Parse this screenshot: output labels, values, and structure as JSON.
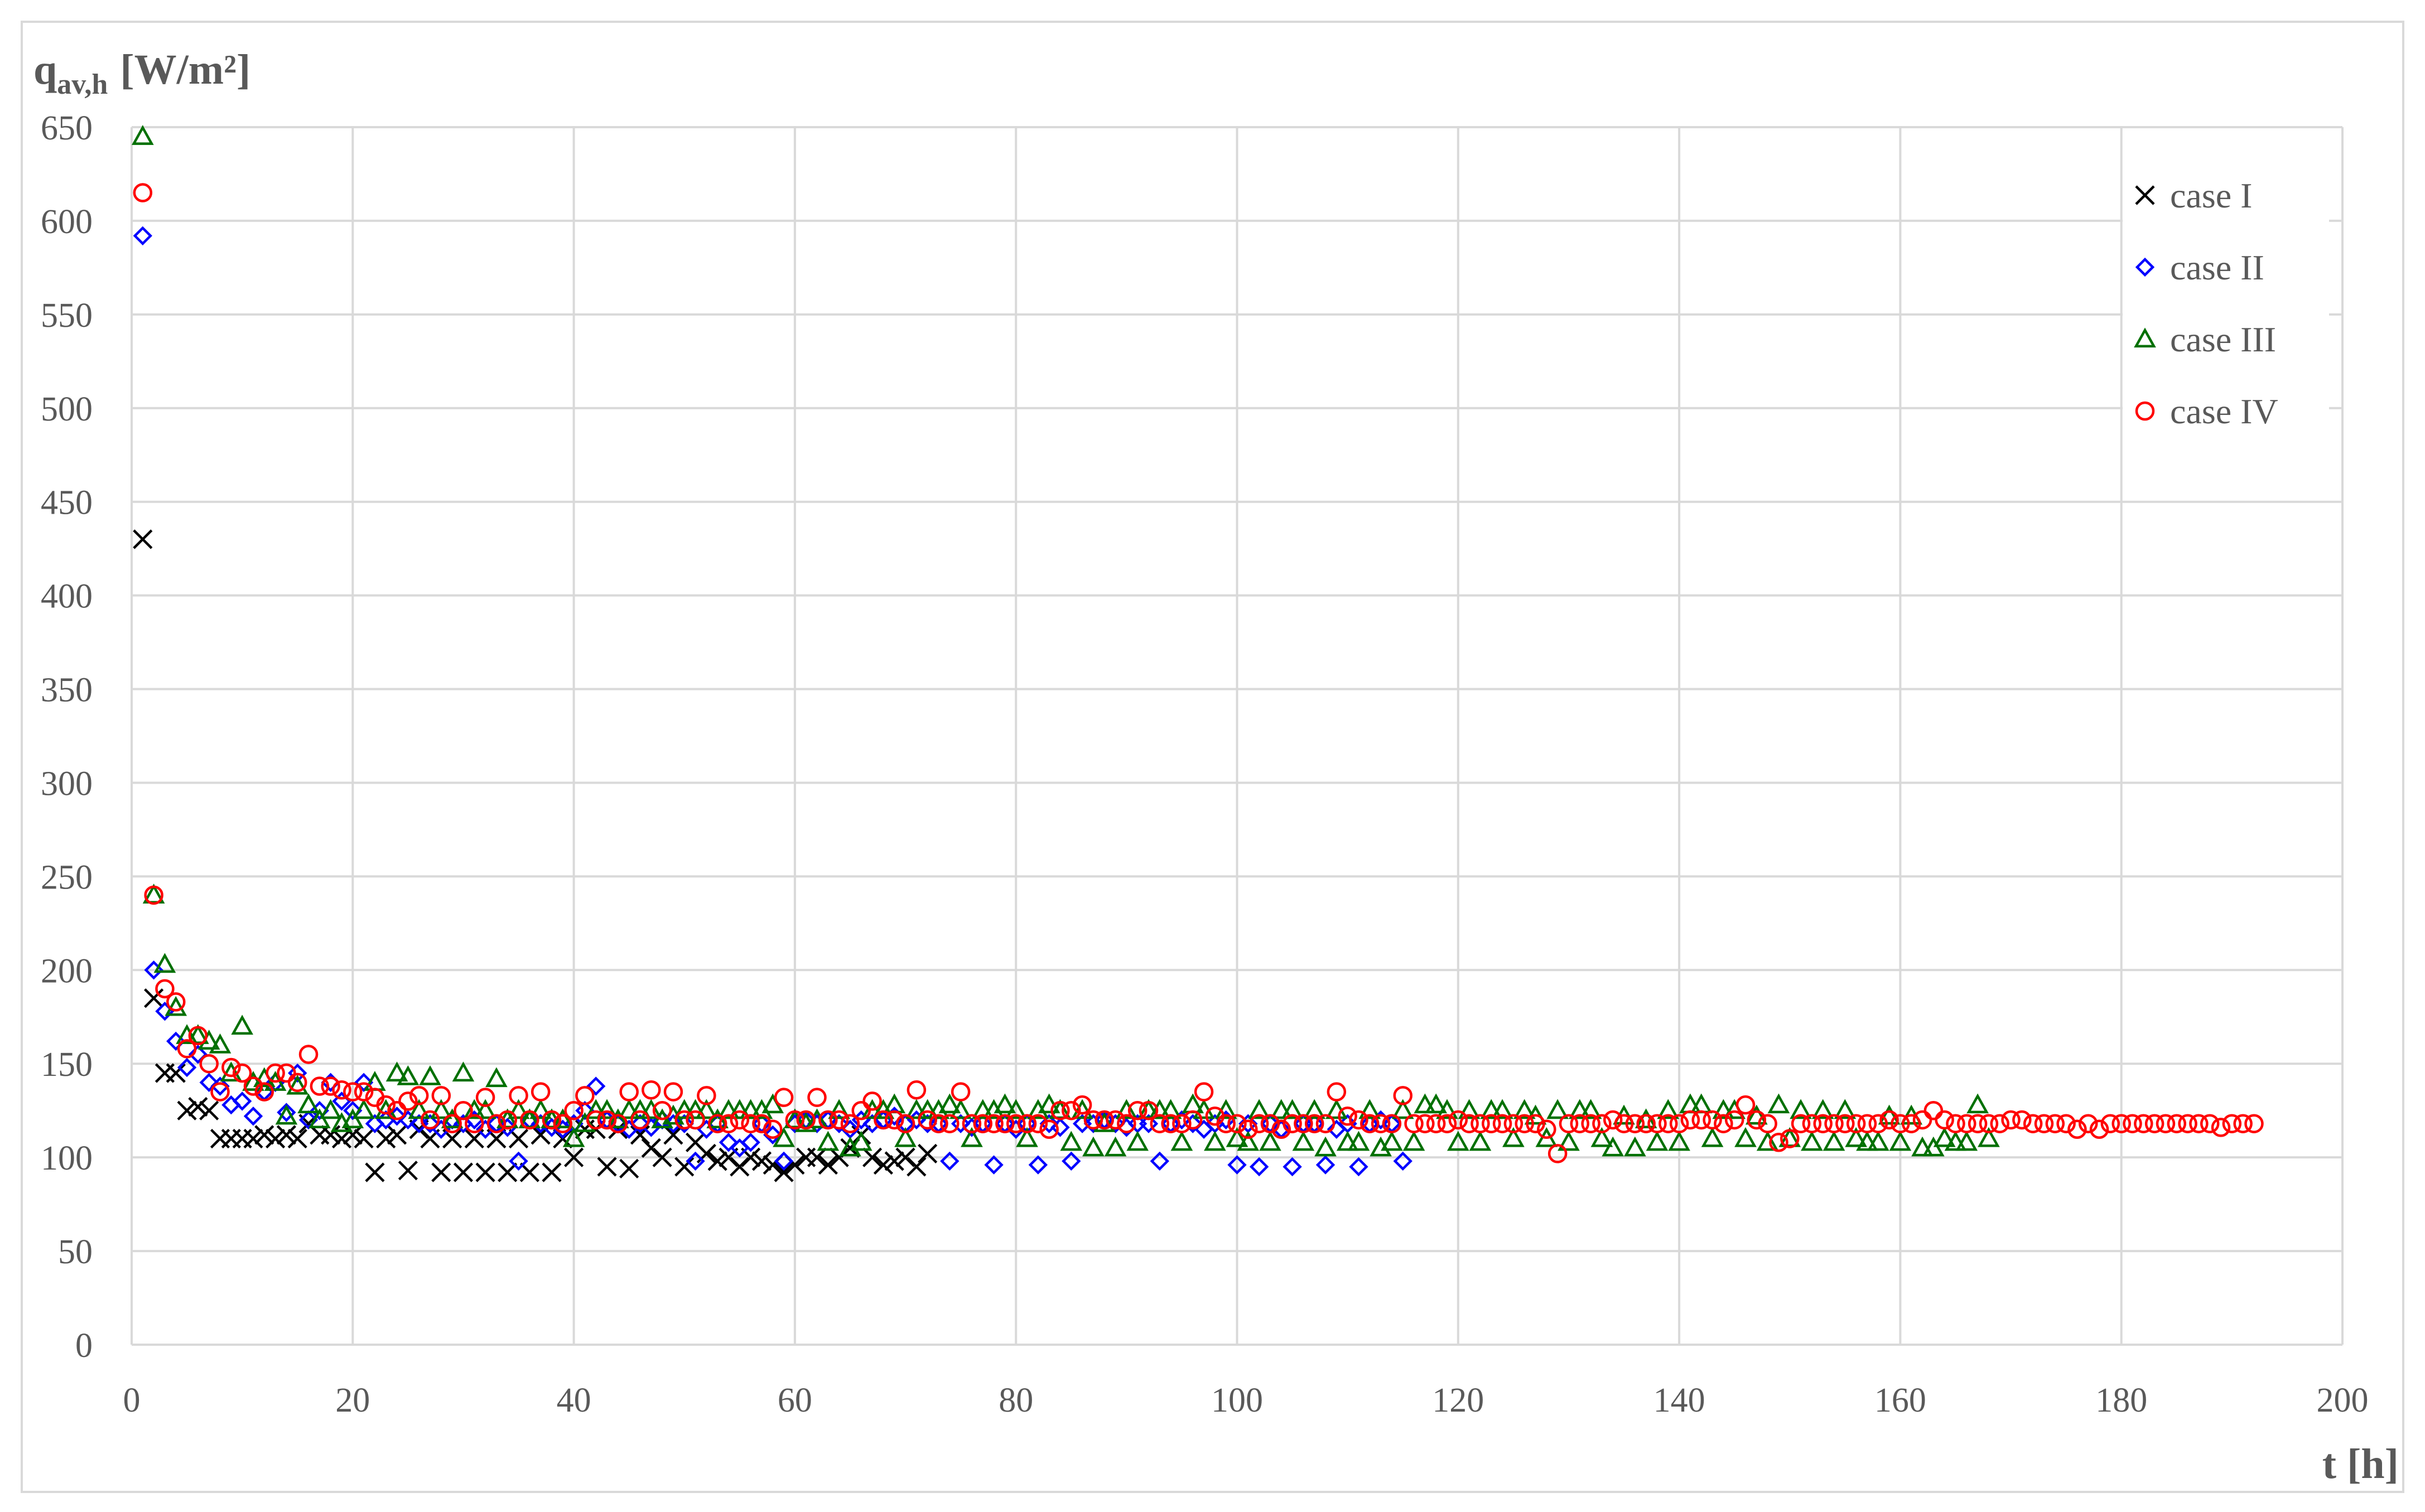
{
  "chart_data": {
    "type": "scatter",
    "y_label": {
      "symbol": "q",
      "subscript": "av,h",
      "unit": "[W/m²]"
    },
    "x_label": "t [h]",
    "xlim": [
      0,
      200
    ],
    "xticks": [
      0,
      20,
      40,
      60,
      80,
      100,
      120,
      140,
      160,
      180,
      200
    ],
    "ylim": [
      0,
      650
    ],
    "yticks": [
      0,
      50,
      100,
      150,
      200,
      250,
      300,
      350,
      400,
      450,
      500,
      550,
      600,
      650
    ],
    "grid": true,
    "legend": "top-right",
    "x": [
      1,
      2,
      3,
      4,
      5,
      6,
      7,
      8,
      9,
      10,
      11,
      12,
      13,
      14,
      15,
      16,
      17,
      18,
      19,
      20,
      21,
      22,
      23,
      24,
      25,
      26,
      27,
      28,
      29,
      30,
      31,
      32,
      33,
      34,
      35,
      36,
      37,
      38,
      39,
      40,
      41,
      42,
      43,
      44,
      45,
      46,
      47,
      48,
      49,
      50,
      51,
      52,
      53,
      54,
      55,
      56,
      57,
      58,
      59,
      60,
      61,
      62,
      63,
      64,
      65,
      66,
      67,
      68,
      69,
      70,
      71,
      72,
      73,
      74,
      75,
      76,
      77,
      78,
      79,
      80,
      81,
      82,
      83,
      84,
      85,
      86,
      87,
      88,
      89,
      90,
      91,
      92,
      93,
      94,
      95,
      96,
      97,
      98,
      99,
      100,
      101,
      102,
      103,
      104,
      105,
      106,
      107,
      108,
      109,
      110,
      111,
      112,
      113,
      114,
      115,
      116,
      117,
      118,
      119,
      120,
      121,
      122,
      123,
      124,
      125,
      126,
      127,
      128,
      129,
      130,
      131,
      132,
      133,
      134,
      135,
      136,
      137,
      138,
      139,
      140,
      141,
      142,
      143,
      144,
      145,
      146,
      147,
      148,
      149,
      150,
      151,
      152,
      153,
      154,
      155,
      156,
      157,
      158,
      159,
      160,
      161,
      162,
      163,
      164,
      165,
      166,
      167,
      168,
      169,
      170,
      171,
      172,
      173,
      174,
      175,
      176,
      177,
      178,
      179,
      180,
      181,
      182,
      183,
      184,
      185,
      186,
      187,
      188,
      189,
      190,
      191,
      192
    ],
    "series": [
      {
        "name": "case I",
        "color": "#000000",
        "marker": "x",
        "values": [
          430,
          185,
          145,
          145,
          125,
          127,
          125,
          110,
          110,
          110,
          110,
          112,
          110,
          112,
          110,
          118,
          112,
          112,
          110,
          112,
          110,
          92,
          110,
          112,
          93,
          115,
          110,
          92,
          110,
          92,
          110,
          92,
          110,
          92,
          110,
          92,
          112,
          92,
          110,
          100,
          115,
          115,
          95,
          115,
          94,
          112,
          105,
          100,
          112,
          95,
          108,
          102,
          98,
          100,
          95,
          100,
          98,
          96,
          92,
          96,
          100,
          100,
          96,
          100,
          105,
          112,
          100,
          96,
          98,
          100,
          95,
          102,
          null,
          null,
          null,
          null,
          null,
          null,
          null,
          null,
          null,
          null,
          null,
          null,
          null,
          null,
          null,
          null,
          null,
          null,
          null,
          null,
          null,
          null,
          null,
          null,
          null,
          null,
          null,
          null,
          null,
          null,
          null,
          null,
          null,
          null,
          null,
          null,
          null,
          null,
          null,
          null,
          null,
          null,
          null,
          null,
          null,
          null,
          null,
          null,
          null,
          null,
          null,
          null,
          null,
          null,
          null,
          null,
          null,
          null,
          null,
          null,
          null,
          null,
          null,
          null,
          null,
          null,
          null,
          null,
          null,
          null,
          null,
          null,
          null,
          null,
          null,
          null,
          null,
          null,
          null,
          null,
          null,
          null,
          null,
          null,
          null,
          null,
          null,
          null,
          null,
          null,
          null,
          null,
          null,
          null,
          null,
          null,
          null,
          null,
          null,
          null,
          null,
          null,
          null,
          null,
          null,
          null,
          null,
          null,
          null,
          null,
          null,
          null,
          null,
          null,
          null,
          null,
          null,
          null,
          null,
          null
        ]
      },
      {
        "name": "case II",
        "color": "#0000ff",
        "marker": "diamond",
        "values": [
          592,
          200,
          178,
          162,
          148,
          155,
          140,
          138,
          128,
          130,
          122,
          135,
          140,
          124,
          145,
          120,
          125,
          140,
          130,
          125,
          140,
          118,
          120,
          122,
          120,
          118,
          118,
          115,
          120,
          118,
          120,
          115,
          118,
          116,
          98,
          120,
          118,
          116,
          115,
          118,
          125,
          138,
          120,
          118,
          115,
          118,
          116,
          120,
          118,
          118,
          98,
          115,
          118,
          108,
          105,
          108,
          118,
          112,
          98,
          118,
          120,
          118,
          120,
          118,
          115,
          120,
          118,
          120,
          122,
          118,
          120,
          118,
          118,
          98,
          118,
          116,
          118,
          96,
          118,
          115,
          118,
          96,
          118,
          116,
          98,
          118,
          118,
          120,
          118,
          116,
          118,
          118,
          98,
          118,
          120,
          118,
          115,
          118,
          120,
          96,
          118,
          95,
          118,
          115,
          95,
          118,
          118,
          96,
          115,
          118,
          95,
          118,
          120,
          118,
          98,
          null,
          null,
          null,
          null,
          null,
          null,
          null,
          null,
          null,
          null,
          null,
          null,
          null,
          null,
          null,
          null,
          null,
          null,
          null,
          null,
          null,
          null,
          null,
          null,
          null,
          null,
          null,
          null,
          null,
          null,
          null,
          null,
          null,
          null,
          null,
          null,
          null,
          null,
          null,
          null,
          null,
          null,
          null,
          null,
          null,
          null,
          null,
          null,
          null,
          null,
          null,
          null,
          null,
          null,
          null,
          null,
          null,
          null,
          null,
          null,
          null,
          null,
          null,
          null,
          null,
          null,
          null,
          null,
          null,
          null,
          null,
          null,
          null,
          null,
          null,
          null,
          null
        ]
      },
      {
        "name": "case III",
        "color": "#007000",
        "marker": "triangle",
        "values": [
          645,
          240,
          203,
          180,
          165,
          165,
          162,
          160,
          145,
          170,
          140,
          142,
          140,
          122,
          138,
          128,
          120,
          125,
          118,
          120,
          125,
          140,
          125,
          145,
          143,
          125,
          143,
          125,
          120,
          145,
          125,
          125,
          142,
          120,
          125,
          120,
          125,
          120,
          120,
          110,
          118,
          125,
          125,
          120,
          125,
          125,
          125,
          120,
          122,
          125,
          125,
          125,
          120,
          125,
          125,
          125,
          125,
          128,
          110,
          120,
          118,
          120,
          108,
          125,
          105,
          108,
          125,
          125,
          128,
          110,
          125,
          125,
          125,
          128,
          125,
          110,
          125,
          125,
          128,
          125,
          110,
          125,
          128,
          125,
          108,
          125,
          105,
          118,
          105,
          125,
          108,
          125,
          125,
          125,
          108,
          128,
          125,
          108,
          125,
          110,
          108,
          125,
          108,
          125,
          125,
          108,
          125,
          105,
          125,
          108,
          108,
          125,
          105,
          108,
          125,
          108,
          128,
          128,
          125,
          108,
          125,
          108,
          125,
          125,
          110,
          125,
          122,
          110,
          125,
          108,
          125,
          125,
          110,
          105,
          122,
          105,
          120,
          108,
          125,
          108,
          128,
          128,
          110,
          125,
          125,
          110,
          122,
          108,
          128,
          110,
          125,
          108,
          125,
          108,
          125,
          110,
          108,
          108,
          122,
          108,
          122,
          105,
          105,
          110,
          108,
          108,
          128,
          110,
          null,
          null,
          null,
          null,
          null,
          null,
          null,
          null,
          null,
          null,
          null,
          null,
          null,
          null,
          null,
          null,
          null,
          null,
          null,
          null,
          null,
          null,
          null,
          null
        ]
      },
      {
        "name": "case IV",
        "color": "#ff0000",
        "marker": "circle",
        "values": [
          615,
          240,
          190,
          183,
          158,
          165,
          150,
          135,
          148,
          145,
          138,
          135,
          145,
          145,
          140,
          155,
          138,
          138,
          136,
          135,
          135,
          132,
          128,
          125,
          130,
          133,
          120,
          133,
          118,
          125,
          118,
          132,
          118,
          120,
          133,
          120,
          135,
          120,
          118,
          125,
          133,
          120,
          120,
          118,
          135,
          120,
          136,
          125,
          135,
          120,
          120,
          133,
          118,
          118,
          120,
          118,
          118,
          115,
          132,
          120,
          120,
          132,
          120,
          120,
          118,
          125,
          130,
          120,
          120,
          118,
          136,
          120,
          118,
          118,
          135,
          118,
          118,
          118,
          118,
          118,
          118,
          118,
          115,
          125,
          125,
          128,
          120,
          120,
          120,
          118,
          125,
          125,
          118,
          118,
          118,
          120,
          135,
          122,
          118,
          118,
          115,
          118,
          118,
          115,
          118,
          118,
          118,
          118,
          135,
          122,
          120,
          118,
          118,
          118,
          133,
          118,
          118,
          118,
          118,
          120,
          118,
          118,
          118,
          118,
          118,
          118,
          118,
          115,
          102,
          118,
          118,
          118,
          118,
          120,
          118,
          118,
          118,
          118,
          118,
          118,
          120,
          120,
          120,
          118,
          120,
          128,
          120,
          118,
          108,
          110,
          118,
          118,
          118,
          118,
          118,
          118,
          118,
          118,
          120,
          118,
          118,
          120,
          125,
          120,
          118,
          118,
          118,
          118,
          118,
          120,
          120,
          118,
          118,
          118,
          118,
          115,
          118,
          115,
          118,
          118,
          118,
          118,
          118,
          118,
          118,
          118,
          118,
          118,
          116,
          118,
          118,
          118
        ]
      }
    ]
  }
}
